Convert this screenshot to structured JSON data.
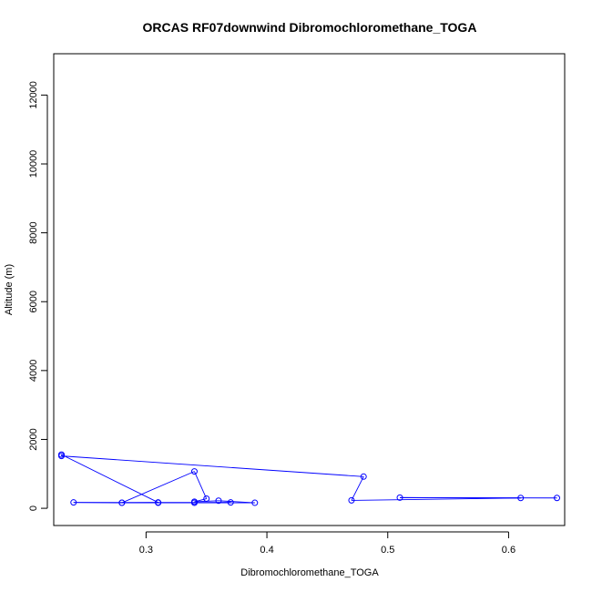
{
  "chart_data": {
    "type": "line",
    "title": "ORCAS RF07downwind Dibromochloromethane_TOGA",
    "xlabel": "Dibromochloromethane_TOGA",
    "ylabel": "Altitude (m)",
    "xlim": [
      0.2236,
      0.6464
    ],
    "ylim": [
      -500,
      13200
    ],
    "xticks": [
      0.3,
      0.4,
      0.5,
      0.6
    ],
    "xtick_labels": [
      "0.3",
      "0.4",
      "0.5",
      "0.6"
    ],
    "yticks": [
      0,
      2000,
      4000,
      6000,
      8000,
      10000,
      12000
    ],
    "ytick_labels": [
      "0",
      "2000",
      "4000",
      "6000",
      "8000",
      "10000",
      "12000"
    ],
    "grid": false,
    "legend": "none",
    "line_color": "#0000ff",
    "marker": "open-circle",
    "series": [
      {
        "x": [
          0.64,
          0.51,
          0.61,
          0.47,
          0.48,
          0.23,
          0.23,
          0.31,
          0.28,
          0.34,
          0.35,
          0.34,
          0.36,
          0.39,
          0.28,
          0.24,
          0.37,
          0.34,
          0.31
        ],
        "y": [
          300,
          310,
          300,
          230,
          920,
          1520,
          1560,
          170,
          160,
          1070,
          280,
          190,
          220,
          160,
          160,
          170,
          170,
          160,
          160
        ]
      }
    ]
  }
}
